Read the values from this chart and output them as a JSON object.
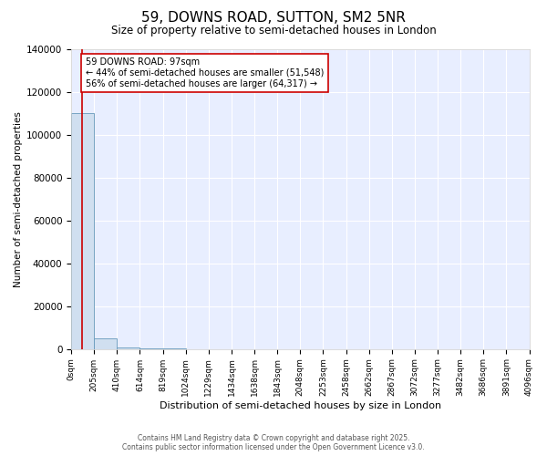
{
  "title": "59, DOWNS ROAD, SUTTON, SM2 5NR",
  "subtitle": "Size of property relative to semi-detached houses in London",
  "xlabel": "Distribution of semi-detached houses by size in London",
  "ylabel": "Number of semi-detached properties",
  "bin_edges": [
    0,
    205,
    410,
    614,
    819,
    1024,
    1229,
    1434,
    1638,
    1843,
    2048,
    2253,
    2458,
    2662,
    2867,
    3072,
    3277,
    3482,
    3686,
    3891,
    4096
  ],
  "bin_labels": [
    "0sqm",
    "205sqm",
    "410sqm",
    "614sqm",
    "819sqm",
    "1024sqm",
    "1229sqm",
    "1434sqm",
    "1638sqm",
    "1843sqm",
    "2048sqm",
    "2253sqm",
    "2458sqm",
    "2662sqm",
    "2867sqm",
    "3072sqm",
    "3277sqm",
    "3482sqm",
    "3686sqm",
    "3891sqm",
    "4096sqm"
  ],
  "bar_heights": [
    110000,
    5000,
    600,
    150,
    60,
    30,
    15,
    8,
    5,
    4,
    3,
    2,
    2,
    1,
    1,
    1,
    1,
    0,
    0,
    0
  ],
  "bar_color": "#d0dff0",
  "bar_edge_color": "#6699bb",
  "property_size": 97,
  "pct_smaller": 44,
  "pct_larger": 56,
  "n_smaller": 51548,
  "n_larger": 64317,
  "red_line_color": "#cc0000",
  "ylim": [
    0,
    140000
  ],
  "yticks": [
    0,
    20000,
    40000,
    60000,
    80000,
    100000,
    120000,
    140000
  ],
  "plot_bg_color": "#e8eeff",
  "fig_bg_color": "#ffffff",
  "grid_color": "#ffffff",
  "footer": "Contains HM Land Registry data © Crown copyright and database right 2025.\nContains public sector information licensed under the Open Government Licence v3.0."
}
